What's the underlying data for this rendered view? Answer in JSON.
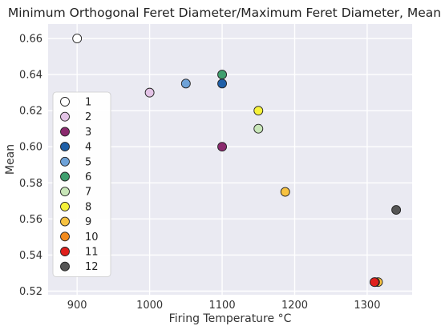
{
  "chart_data": {
    "type": "scatter",
    "title": "Minimum Orthogonal Feret Diameter/Maximum Feret Diameter, Mean",
    "xlabel": "Firing Temperature °C",
    "ylabel": "Mean",
    "xlim": [
      860,
      1362
    ],
    "ylim": [
      0.518,
      0.668
    ],
    "xticks": [
      900,
      1000,
      1100,
      1200,
      1300
    ],
    "yticks": [
      0.52,
      0.54,
      0.56,
      0.58,
      0.6,
      0.62,
      0.64,
      0.66
    ],
    "grid": true,
    "legend_position": "left",
    "series": [
      {
        "name": "1",
        "color": "#ffffff",
        "points": [
          {
            "x": 900,
            "y": 0.66
          }
        ]
      },
      {
        "name": "2",
        "color": "#e3c3e6",
        "points": [
          {
            "x": 1000,
            "y": 0.63
          }
        ]
      },
      {
        "name": "3",
        "color": "#8b2a6e",
        "points": [
          {
            "x": 1100,
            "y": 0.6
          }
        ]
      },
      {
        "name": "4",
        "color": "#1f5fa8",
        "points": [
          {
            "x": 1100,
            "y": 0.635
          }
        ]
      },
      {
        "name": "5",
        "color": "#6ea2d8",
        "points": [
          {
            "x": 1050,
            "y": 0.635
          }
        ]
      },
      {
        "name": "6",
        "color": "#3f9f6e",
        "points": [
          {
            "x": 1100,
            "y": 0.64
          }
        ]
      },
      {
        "name": "7",
        "color": "#c8e6b8",
        "points": [
          {
            "x": 1150,
            "y": 0.61
          }
        ]
      },
      {
        "name": "8",
        "color": "#f6f23a",
        "points": [
          {
            "x": 1150,
            "y": 0.62
          }
        ]
      },
      {
        "name": "9",
        "color": "#f7c241",
        "points": [
          {
            "x": 1187,
            "y": 0.575
          },
          {
            "x": 1315,
            "y": 0.525
          }
        ]
      },
      {
        "name": "10",
        "color": "#f28a1c",
        "points": [
          {
            "x": 1311,
            "y": 0.525
          }
        ]
      },
      {
        "name": "11",
        "color": "#e0201c",
        "points": [
          {
            "x": 1310,
            "y": 0.525
          }
        ]
      },
      {
        "name": "12",
        "color": "#555555",
        "points": [
          {
            "x": 1340,
            "y": 0.565
          }
        ]
      }
    ]
  }
}
